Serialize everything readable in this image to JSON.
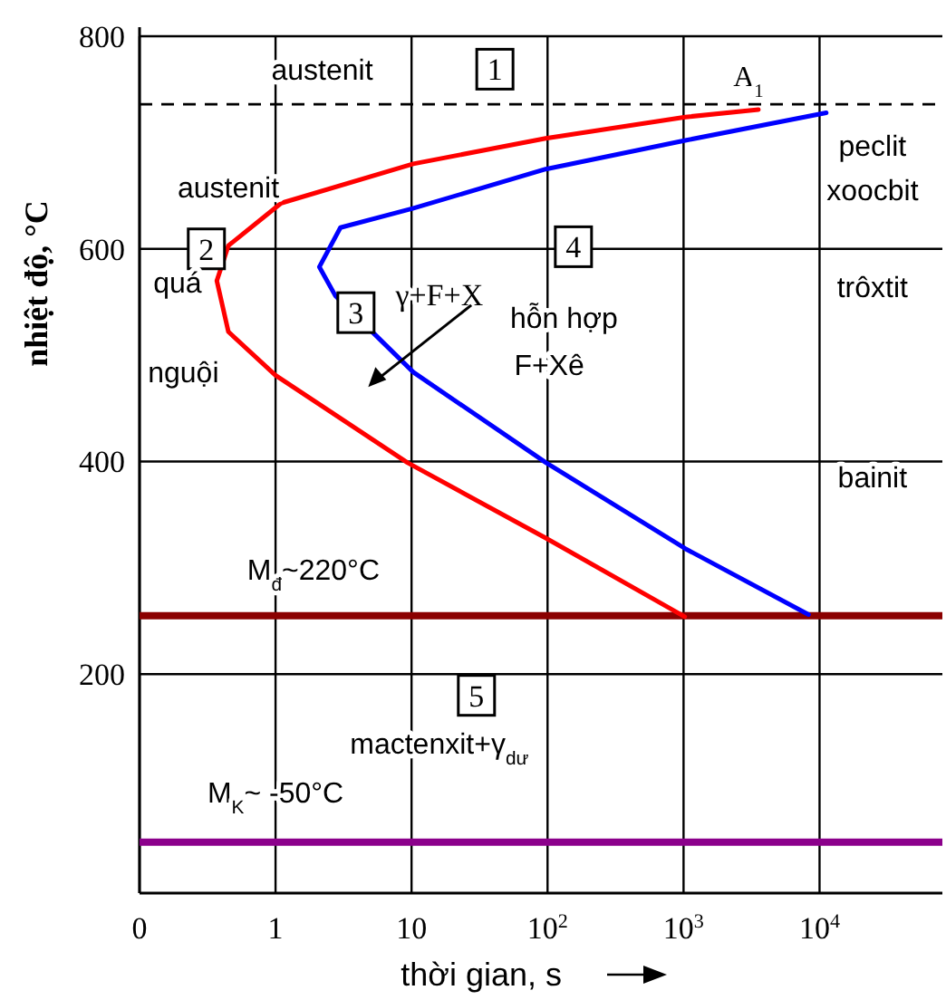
{
  "chart_data": {
    "type": "line",
    "xlabel": "thời gian, s",
    "ylabel": "nhiệt độ, °C",
    "log": "x",
    "xlim": [
      0.1,
      80000
    ],
    "xticks": [
      {
        "value": 0.1,
        "label": "0"
      },
      1,
      10,
      {
        "value": 100,
        "label": "10$^{2}$"
      },
      {
        "value": 1000,
        "label": "10$^{3}$"
      },
      {
        "value": 10000,
        "label": "10$^{4}$"
      }
    ],
    "ylim": [
      -6,
      800
    ],
    "yticks": [
      200,
      400,
      600,
      800
    ],
    "grid": true,
    "series": [
      {
        "color": "#ff0000",
        "x": [
          3550,
          1030,
          97,
          10.3,
          1.1,
          0.45,
          0.37,
          0.45,
          1.0,
          9.3,
          97,
          1020
        ],
        "values": [
          731,
          724,
          704,
          680,
          643,
          603,
          570,
          522,
          481,
          399,
          328,
          254
        ]
      },
      {
        "color": "#0000ff",
        "x": [
          11200,
          1030,
          97,
          10.2,
          3.0,
          2.1,
          2.75,
          10.3,
          97,
          1030,
          8300
        ],
        "values": [
          728,
          702,
          675,
          638,
          620,
          583,
          556,
          484,
          399,
          318,
          256
        ]
      }
    ],
    "ref_lines": [
      {
        "axis": "y",
        "value": 736,
        "label": "A$_{1}$",
        "color": "#000000",
        "line_style": "dashed"
      },
      {
        "axis": "y",
        "value": 255,
        "label": "M$_{đ}$~220°C",
        "color": "#8b0000",
        "line_style": "solid"
      },
      {
        "axis": "y",
        "value": 42,
        "label": "M$_{K}$~ -50°C",
        "color": "#8b008b",
        "line_style": "solid"
      }
    ],
    "annotations": [
      "austenit",
      "1",
      "austenit",
      "2",
      "quá",
      "nguội",
      "3",
      "γ+F+X",
      "hỗn hợp",
      "F+Xê",
      "4",
      "peclit",
      "xoocbit",
      "trôxtit",
      "bainit",
      "5",
      "mactenxit+γ$_{dư}$"
    ]
  }
}
